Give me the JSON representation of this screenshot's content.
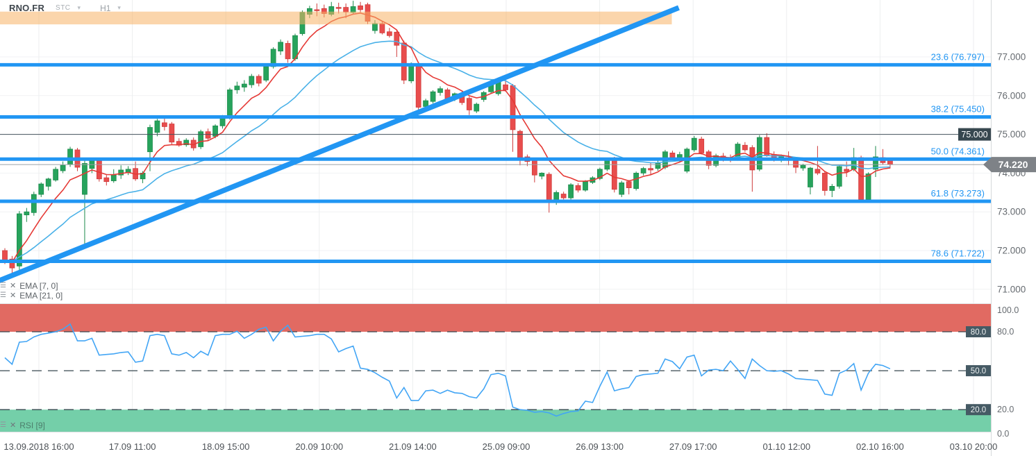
{
  "header": {
    "symbol": "RNO.FR",
    "indicator_selector": "STC",
    "timeframe_selector": "H1"
  },
  "legend": {
    "ema_fast_label": "EMA [7, 0]",
    "ema_slow_label": "EMA [21, 0]",
    "rsi_label": "RSI [9]"
  },
  "price_scale": {
    "labels": [
      "77.000",
      "76.000",
      "75.000",
      "74.000",
      "73.000",
      "72.000",
      "71.000"
    ],
    "values": [
      77,
      76,
      75,
      74,
      73,
      72,
      71
    ]
  },
  "rsi_scale": {
    "labels": [
      "100.0",
      "80.0",
      "20.0",
      "0.0"
    ],
    "values": [
      100,
      80,
      20,
      0
    ],
    "level_badges": [
      {
        "label": "80.0",
        "value": 80
      },
      {
        "label": "50.0",
        "value": 50
      },
      {
        "label": "20.0",
        "value": 20
      }
    ]
  },
  "time_scale": {
    "labels": [
      "13.09.2018  16:00",
      "17.09  11:00",
      "18.09  15:00",
      "20.09  10:00",
      "21.09  14:00",
      "25.09  09:00",
      "26.09  13:00",
      "27.09  17:00",
      "01.10  12:00",
      "02.10  16:00",
      "03.10  20:00"
    ]
  },
  "price_line": {
    "value": 74.22,
    "label": "74.220"
  },
  "alert_line": {
    "value": 75.0,
    "label": "75.000"
  },
  "colors": {
    "up": "#27a35c",
    "up_border": "#1b8a4b",
    "down": "#e84d4d",
    "down_border": "#cf3a3a",
    "ema_fast": "#e53935",
    "ema_slow": "#49b1e8",
    "fib": "#2196f3",
    "trend": "#2196f3",
    "rsi_line": "#42a5f5",
    "overbought_zone": "#e16a62",
    "oversold_zone": "#74cfa9",
    "highlight_band": "rgba(248,178,102,0.55)",
    "level_badge": "#455a64",
    "alert_badge": "#37474f",
    "price_badge": "#7e8287",
    "axis_text": "#666b70",
    "grid": "#eceeef",
    "hgrid": "#f1f2f4",
    "dash_level": "#37474f"
  },
  "chart_data": {
    "type": "candlestick",
    "title": "RNO.FR",
    "timeframe": "H1",
    "price_range": [
      70.64,
      78.47
    ],
    "candles": [
      [
        72.0,
        72.06,
        71.65,
        71.74
      ],
      [
        71.78,
        71.86,
        71.4,
        71.55
      ],
      [
        71.6,
        73.02,
        71.5,
        72.95
      ],
      [
        72.92,
        73.1,
        72.74,
        73.0
      ],
      [
        72.98,
        73.52,
        72.9,
        73.45
      ],
      [
        73.45,
        73.76,
        73.38,
        73.72
      ],
      [
        73.66,
        73.88,
        73.55,
        73.85
      ],
      [
        73.82,
        74.16,
        73.78,
        74.1
      ],
      [
        74.06,
        74.3,
        74.0,
        74.2
      ],
      [
        74.22,
        74.68,
        74.16,
        74.62
      ],
      [
        74.6,
        74.65,
        74.05,
        74.15
      ],
      [
        73.45,
        74.32,
        72.1,
        74.25
      ],
      [
        74.12,
        74.4,
        74.0,
        74.35
      ],
      [
        74.32,
        74.36,
        73.78,
        73.85
      ],
      [
        73.88,
        73.95,
        73.68,
        73.78
      ],
      [
        73.8,
        74.1,
        73.75,
        73.95
      ],
      [
        73.95,
        74.2,
        73.85,
        74.08
      ],
      [
        74.02,
        74.18,
        73.95,
        74.1
      ],
      [
        74.12,
        74.3,
        73.8,
        73.85
      ],
      [
        73.85,
        74.05,
        73.74,
        74.0
      ],
      [
        74.55,
        75.25,
        74.05,
        75.18
      ],
      [
        75.05,
        75.4,
        74.95,
        75.35
      ],
      [
        75.3,
        75.45,
        75.1,
        75.2
      ],
      [
        75.27,
        75.32,
        74.74,
        74.8
      ],
      [
        74.82,
        74.9,
        74.68,
        74.72
      ],
      [
        74.73,
        74.9,
        74.68,
        74.85
      ],
      [
        74.85,
        74.92,
        74.58,
        74.65
      ],
      [
        74.68,
        75.12,
        74.62,
        75.07
      ],
      [
        75.07,
        75.15,
        74.85,
        74.9
      ],
      [
        74.95,
        75.26,
        74.9,
        75.22
      ],
      [
        75.22,
        75.5,
        75.15,
        75.42
      ],
      [
        75.42,
        76.2,
        75.38,
        76.15
      ],
      [
        76.15,
        76.36,
        76.05,
        76.25
      ],
      [
        76.22,
        76.4,
        76.1,
        76.3
      ],
      [
        76.28,
        76.56,
        76.2,
        76.5
      ],
      [
        76.5,
        76.55,
        76.24,
        76.32
      ],
      [
        76.4,
        76.8,
        76.35,
        76.75
      ],
      [
        76.75,
        77.25,
        76.7,
        77.2
      ],
      [
        77.15,
        77.45,
        77.05,
        77.38
      ],
      [
        77.35,
        77.42,
        76.85,
        76.95
      ],
      [
        76.95,
        77.6,
        76.9,
        77.55
      ],
      [
        77.6,
        78.2,
        77.55,
        78.15
      ],
      [
        78.1,
        78.32,
        78.0,
        78.25
      ],
      [
        78.22,
        78.38,
        78.05,
        78.2
      ],
      [
        78.25,
        78.35,
        78.02,
        78.12
      ],
      [
        78.1,
        78.42,
        78.05,
        78.3
      ],
      [
        78.28,
        78.4,
        78.12,
        78.25
      ],
      [
        78.28,
        78.38,
        78.0,
        78.16
      ],
      [
        78.15,
        78.45,
        78.1,
        78.3
      ],
      [
        78.32,
        78.42,
        78.15,
        78.22
      ],
      [
        78.35,
        78.4,
        77.85,
        77.92
      ],
      [
        77.68,
        77.95,
        77.6,
        77.86
      ],
      [
        77.86,
        77.92,
        77.58,
        77.62
      ],
      [
        77.65,
        77.75,
        77.5,
        77.55
      ],
      [
        77.64,
        77.68,
        77.0,
        77.3
      ],
      [
        77.36,
        77.42,
        76.3,
        76.4
      ],
      [
        76.38,
        76.86,
        76.32,
        76.8
      ],
      [
        76.76,
        76.82,
        75.62,
        75.7
      ],
      [
        75.72,
        75.92,
        75.65,
        75.87
      ],
      [
        75.85,
        76.14,
        75.8,
        76.1
      ],
      [
        76.08,
        76.24,
        76.0,
        76.18
      ],
      [
        76.15,
        76.2,
        75.85,
        75.9
      ],
      [
        75.92,
        76.08,
        75.86,
        76.05
      ],
      [
        76.05,
        76.1,
        75.76,
        75.82
      ],
      [
        75.93,
        75.98,
        75.5,
        75.63
      ],
      [
        75.6,
        75.82,
        75.55,
        75.78
      ],
      [
        75.9,
        76.12,
        75.84,
        76.08
      ],
      [
        76.1,
        76.42,
        76.05,
        76.28
      ],
      [
        76.05,
        76.4,
        76.0,
        76.36
      ],
      [
        76.28,
        76.46,
        76.1,
        76.15
      ],
      [
        76.26,
        76.3,
        74.55,
        75.12
      ],
      [
        75.08,
        75.12,
        74.2,
        74.4
      ],
      [
        74.42,
        74.48,
        74.18,
        74.3
      ],
      [
        74.35,
        74.4,
        73.76,
        73.95
      ],
      [
        73.92,
        74.02,
        73.84,
        74.0
      ],
      [
        73.97,
        74.02,
        72.98,
        73.3
      ],
      [
        73.28,
        73.55,
        73.18,
        73.5
      ],
      [
        73.46,
        73.52,
        73.32,
        73.36
      ],
      [
        73.36,
        73.74,
        73.32,
        73.7
      ],
      [
        73.68,
        73.74,
        73.5,
        73.56
      ],
      [
        73.56,
        73.82,
        73.52,
        73.78
      ],
      [
        73.76,
        73.92,
        73.72,
        73.88
      ],
      [
        73.86,
        74.14,
        73.82,
        74.1
      ],
      [
        74.1,
        74.38,
        74.05,
        74.33
      ],
      [
        74.35,
        74.42,
        73.5,
        73.58
      ],
      [
        73.45,
        73.8,
        73.38,
        73.75
      ],
      [
        73.78,
        73.82,
        73.45,
        73.62
      ],
      [
        73.6,
        74.04,
        73.55,
        74.0
      ],
      [
        74.0,
        74.16,
        73.94,
        74.12
      ],
      [
        74.12,
        74.26,
        73.95,
        74.08
      ],
      [
        74.12,
        74.34,
        74.06,
        74.25
      ],
      [
        74.15,
        74.6,
        74.1,
        74.55
      ],
      [
        74.52,
        74.58,
        74.35,
        74.4
      ],
      [
        74.38,
        74.55,
        74.28,
        74.48
      ],
      [
        74.05,
        74.66,
        74.0,
        74.62
      ],
      [
        74.6,
        74.96,
        74.55,
        74.9
      ],
      [
        74.88,
        74.94,
        74.48,
        74.52
      ],
      [
        74.55,
        74.6,
        74.1,
        74.2
      ],
      [
        74.2,
        74.5,
        74.15,
        74.45
      ],
      [
        74.44,
        74.52,
        74.3,
        74.34
      ],
      [
        74.4,
        74.48,
        74.28,
        74.36
      ],
      [
        74.38,
        74.8,
        74.32,
        74.75
      ],
      [
        74.72,
        74.8,
        74.55,
        74.6
      ],
      [
        74.66,
        74.72,
        73.52,
        74.08
      ],
      [
        74.1,
        74.98,
        74.05,
        74.92
      ],
      [
        74.92,
        75.03,
        74.42,
        74.46
      ],
      [
        74.48,
        74.56,
        74.3,
        74.36
      ],
      [
        74.34,
        74.48,
        74.28,
        74.42
      ],
      [
        74.4,
        74.56,
        74.2,
        74.35
      ],
      [
        74.32,
        74.38,
        74.0,
        74.15
      ],
      [
        74.13,
        74.24,
        74.06,
        74.2
      ],
      [
        73.64,
        74.16,
        73.45,
        74.13
      ],
      [
        74.1,
        74.7,
        73.95,
        74.0
      ],
      [
        74.0,
        74.06,
        73.42,
        73.55
      ],
      [
        73.55,
        73.72,
        73.38,
        73.66
      ],
      [
        73.66,
        74.2,
        73.6,
        74.17
      ],
      [
        74.1,
        74.3,
        73.9,
        74.04
      ],
      [
        74.1,
        74.65,
        74.05,
        74.4
      ],
      [
        74.4,
        74.45,
        73.28,
        73.32
      ],
      [
        73.32,
        74.02,
        73.3,
        73.98
      ],
      [
        74.1,
        74.7,
        73.9,
        74.42
      ],
      [
        74.4,
        74.62,
        74.22,
        74.27
      ],
      [
        74.33,
        74.38,
        74.12,
        74.22
      ]
    ],
    "overlays": {
      "ema": [
        {
          "period": 7,
          "offset": 0
        },
        {
          "period": 21,
          "offset": 0
        }
      ],
      "fibonacci_retracement": [
        {
          "level": "23.6",
          "price": 76.797,
          "display": "23.6 (76.797)"
        },
        {
          "level": "38.2",
          "price": 75.45,
          "display": "38.2 (75.450)"
        },
        {
          "level": "50.0",
          "price": 74.361,
          "display": "50.0 (74.361)"
        },
        {
          "level": "61.8",
          "price": 73.273,
          "display": "61.8 (73.273)"
        },
        {
          "level": "78.6",
          "price": 71.722,
          "display": "78.6 (71.722)"
        }
      ],
      "trendline": {
        "direction": "ascending",
        "x1_frac": -0.007,
        "price1": 71.16,
        "x2_frac": 0.685,
        "price2": 78.27
      },
      "horizontal_alert_line": {
        "price": 75.0,
        "label": "75.000"
      },
      "current_price": {
        "value": 74.22,
        "label": "74.220"
      },
      "highlight_band": {
        "price_top": 78.17,
        "price_bottom": 77.84,
        "x_start_frac": 0,
        "x_end_frac": 0.678
      }
    },
    "rsi": {
      "period": 9,
      "levels": [
        80,
        50,
        20
      ],
      "overbought_zone": [
        80,
        100
      ],
      "oversold_zone": [
        0,
        20
      ],
      "values": [
        60,
        55,
        72,
        72.5,
        76,
        78,
        79,
        80,
        82,
        86,
        73,
        73,
        75,
        62,
        62.5,
        63,
        64,
        64.5,
        56.5,
        57.5,
        77,
        78,
        77,
        63,
        62,
        64,
        60,
        65,
        62,
        77,
        78,
        78,
        80.5,
        75,
        78,
        82,
        83.5,
        73,
        80.5,
        85,
        76,
        76.5,
        77,
        78,
        78,
        74.5,
        64.5,
        67,
        69,
        52,
        51,
        48.5,
        45,
        42,
        29,
        37,
        27,
        27,
        34.5,
        35,
        32.5,
        35,
        33,
        32.5,
        30,
        29,
        36,
        47,
        48,
        46,
        22,
        20,
        19.5,
        18,
        18.5,
        17.5,
        15,
        17,
        18.5,
        19,
        26.5,
        25.5,
        38,
        49,
        34.5,
        36,
        37,
        45.5,
        47,
        47.5,
        48,
        59,
        57,
        51.5,
        60.5,
        62,
        46,
        50.5,
        51,
        50,
        57.5,
        51,
        44,
        59,
        54,
        50,
        49.5,
        50,
        47.5,
        44,
        43.5,
        43,
        42.5,
        32,
        31,
        48,
        50.5,
        55.5,
        35,
        48,
        55,
        54,
        51.5
      ]
    }
  }
}
